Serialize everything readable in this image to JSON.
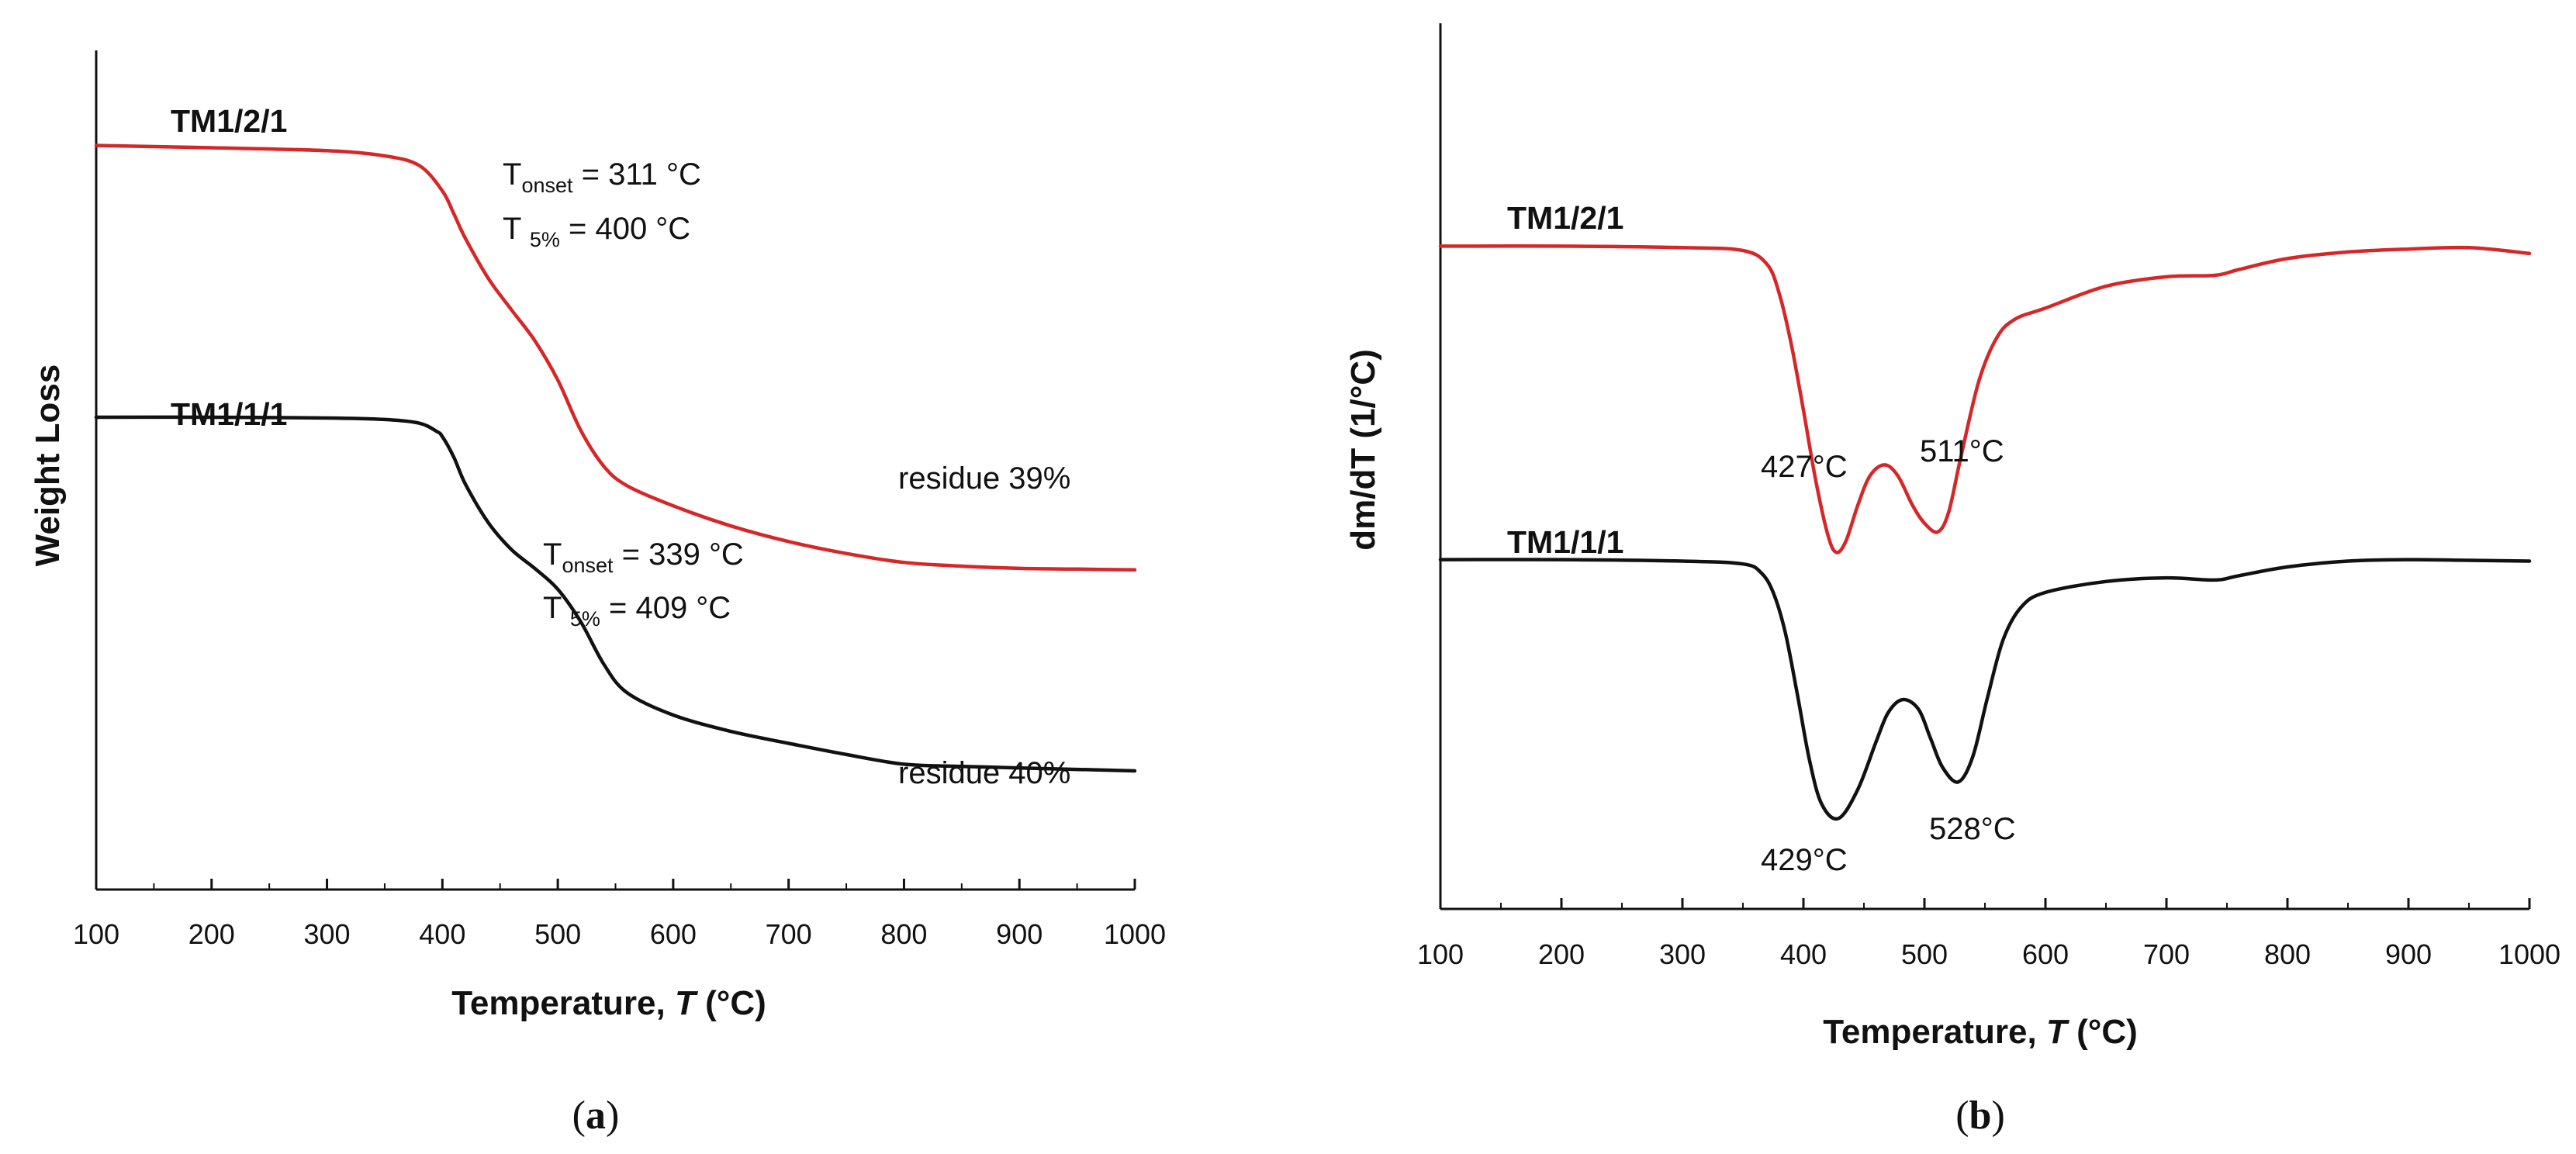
{
  "chart_data": [
    {
      "panel": "(a)",
      "panel_letter": "a",
      "type": "line",
      "title": "",
      "xlabel": "Temperature, ",
      "xlabel_italic": "T",
      "xlabel_unit": " (°C)",
      "ylabel": "Weight Loss",
      "xlim": [
        100,
        1000
      ],
      "ylim": [
        0,
        100
      ],
      "xticks": [
        100,
        200,
        300,
        400,
        500,
        600,
        700,
        800,
        900,
        1000
      ],
      "series": [
        {
          "name": "TM1/2/1",
          "color": "#d62728",
          "x": [
            100,
            200,
            300,
            350,
            380,
            400,
            410,
            420,
            440,
            460,
            480,
            500,
            520,
            540,
            560,
            600,
            650,
            700,
            750,
            800,
            850,
            900,
            950,
            1000
          ],
          "y": [
            94.0,
            93.7,
            93.3,
            92.6,
            91.3,
            87.9,
            84.8,
            81.5,
            76.1,
            71.9,
            67.8,
            62.5,
            55.7,
            50.9,
            48.3,
            45.6,
            42.9,
            40.8,
            39.2,
            38.0,
            37.5,
            37.2,
            37.1,
            37.0
          ],
          "label_text": "TM1/2/1",
          "onset_label": "T",
          "onset_sub": "onset",
          "onset_value": " = 311 °C",
          "t5_label": "T ",
          "t5_sub": "5%",
          "t5_value": " = 400 °C",
          "residue": "residue 39%"
        },
        {
          "name": "TM1/1/1",
          "color": "#111111",
          "x": [
            100,
            200,
            300,
            350,
            380,
            395,
            400,
            410,
            420,
            440,
            460,
            480,
            500,
            520,
            540,
            560,
            600,
            650,
            700,
            750,
            800,
            850,
            900,
            950,
            1000
          ],
          "y": [
            57.5,
            57.5,
            57.4,
            57.2,
            56.7,
            55.6,
            54.9,
            52.1,
            48.5,
            43.3,
            39.7,
            37.2,
            34.4,
            30.0,
            24.3,
            20.5,
            17.5,
            15.3,
            13.7,
            12.2,
            10.9,
            10.6,
            10.4,
            10.2,
            10.0
          ],
          "label_text": "TM1/1/1",
          "onset_label": "T",
          "onset_sub": "onset",
          "onset_value": " = 339 °C",
          "t5_label": "T ",
          "t5_sub": "5%",
          "t5_value": " = 409 °C",
          "residue": "residue 40%"
        }
      ]
    },
    {
      "panel": "(b)",
      "panel_letter": "b",
      "type": "line",
      "title": "",
      "xlabel": "Temperature, ",
      "xlabel_italic": "T",
      "xlabel_unit": " (°C)",
      "ylabel": "dm/dT (1/°C)",
      "xlim": [
        100,
        1000
      ],
      "ylim": [
        0,
        100
      ],
      "xticks": [
        100,
        200,
        300,
        400,
        500,
        600,
        700,
        800,
        900,
        1000
      ],
      "series": [
        {
          "name": "TM1/2/1",
          "color": "#d62728",
          "x": [
            100,
            200,
            300,
            350,
            370,
            380,
            390,
            400,
            410,
            420,
            427,
            435,
            445,
            455,
            467,
            478,
            490,
            500,
            511,
            520,
            530,
            545,
            560,
            575,
            600,
            650,
            700,
            740,
            760,
            800,
            850,
            900,
            950,
            1000
          ],
          "y": [
            79.0,
            79.0,
            78.8,
            78.4,
            76.5,
            72.5,
            65.5,
            56.5,
            47.0,
            39.5,
            37.0,
            38.5,
            43.5,
            47.5,
            49.0,
            47.5,
            43.5,
            41.0,
            39.8,
            42.5,
            50.0,
            60.5,
            66.5,
            69.0,
            70.5,
            73.5,
            74.8,
            75.0,
            75.8,
            77.3,
            78.2,
            78.6,
            78.8,
            78.0
          ],
          "label_text": "TM1/2/1",
          "peaks": [
            "427°C",
            "511°C"
          ]
        },
        {
          "name": "TM1/1/1",
          "color": "#111111",
          "x": [
            100,
            200,
            300,
            350,
            365,
            375,
            385,
            395,
            405,
            415,
            429,
            445,
            460,
            470,
            482,
            495,
            505,
            515,
            528,
            540,
            552,
            565,
            580,
            600,
            650,
            700,
            740,
            760,
            800,
            850,
            900,
            950,
            1000
          ],
          "y": [
            36.0,
            36.0,
            35.8,
            35.4,
            34.2,
            31.5,
            26.0,
            17.5,
            8.5,
            2.5,
            0.5,
            4.5,
            11.0,
            15.0,
            16.8,
            15.5,
            11.5,
            7.5,
            5.5,
            9.0,
            17.0,
            25.0,
            29.5,
            31.5,
            33.0,
            33.5,
            33.2,
            33.8,
            35.0,
            35.8,
            36.0,
            35.9,
            35.8
          ],
          "label_text": "TM1/1/1",
          "peaks": [
            "429°C",
            "528°C"
          ]
        }
      ]
    }
  ]
}
